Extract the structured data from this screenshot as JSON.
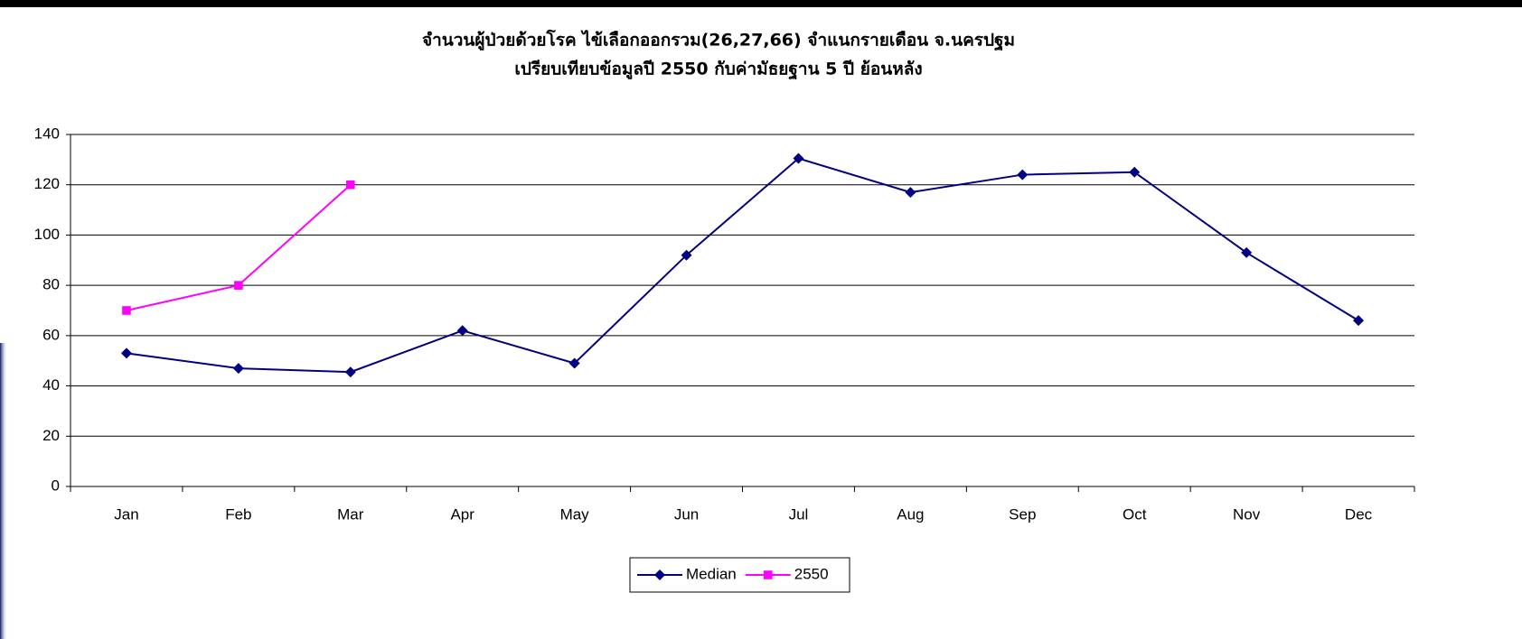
{
  "chart_data": {
    "type": "line",
    "title": "จำนวนผู้ป่วยด้วยโรค  ไข้เลือกออกรวม(26,27,66)  จำแนกรายเดือน   จ.นครปฐม",
    "subtitle": "เปรียบเทียบข้อมูลปี  2550  กับค่ามัธยฐาน 5 ปี ย้อนหลัง",
    "categories": [
      "Jan",
      "Feb",
      "Mar",
      "Apr",
      "May",
      "Jun",
      "Jul",
      "Aug",
      "Sep",
      "Oct",
      "Nov",
      "Dec"
    ],
    "series": [
      {
        "name": "Median",
        "color": "#000080",
        "marker": "diamond",
        "values": [
          53,
          47,
          45.5,
          62,
          49,
          92,
          130.5,
          117,
          124,
          125,
          93,
          66
        ]
      },
      {
        "name": "2550",
        "color": "#ff00ff",
        "marker": "square",
        "values": [
          70,
          80,
          120,
          null,
          null,
          null,
          null,
          null,
          null,
          null,
          null,
          null
        ]
      }
    ],
    "ylim": [
      0,
      140
    ],
    "yticks": [
      0,
      20,
      40,
      60,
      80,
      100,
      120,
      140
    ],
    "grid": true,
    "legend": "bottom"
  }
}
